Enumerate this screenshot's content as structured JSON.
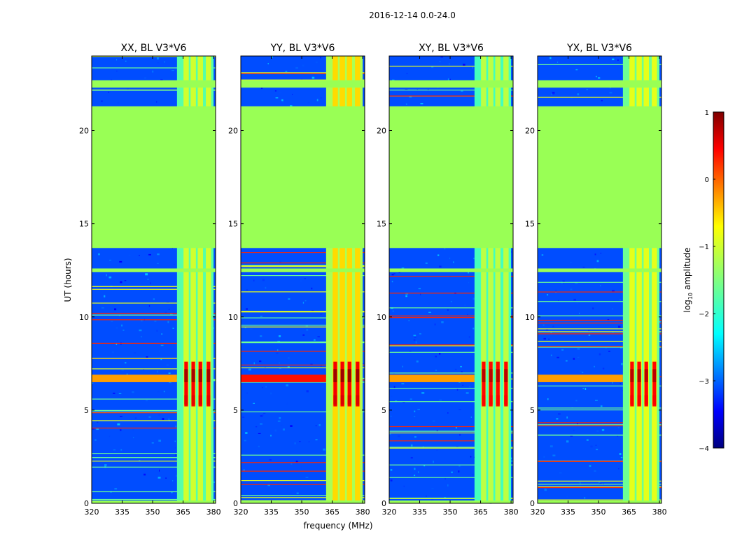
{
  "figure_title": "2016-12-14 0.0-24.0",
  "colors": {
    "colormap": [
      "#00007f",
      "#0000ff",
      "#0080ff",
      "#00ffff",
      "#80ff80",
      "#ffff00",
      "#ff8000",
      "#ff0000",
      "#7f0000"
    ],
    "flagged": "#99ff55",
    "background": "#ffffff"
  },
  "chart_data": {
    "type": "heatmap",
    "xlabel": "frequency (MHz)",
    "ylabel": "UT (hours)",
    "xlim": [
      320,
      381
    ],
    "ylim": [
      0,
      24
    ],
    "x_ticks": [
      320,
      335,
      350,
      365,
      380
    ],
    "y_ticks": [
      0,
      5,
      10,
      15,
      20
    ],
    "panels": [
      {
        "title": "XX, BL V3*V6",
        "key": "XX",
        "band_level": -1.1,
        "peak_level": 0.8
      },
      {
        "title": "YY, BL V3*V6",
        "key": "YY",
        "band_level": -0.7,
        "peak_level": 0.85
      },
      {
        "title": "XY, BL V3*V6",
        "key": "XY",
        "band_level": -1.2,
        "peak_level": 0.7
      },
      {
        "title": "YX, BL V3*V6",
        "key": "YX",
        "band_level": -1.0,
        "peak_level": 0.7
      }
    ],
    "flagged_ut_ranges": [
      [
        13.7,
        21.3
      ],
      [
        12.4,
        12.6
      ],
      [
        22.3,
        22.7
      ],
      [
        0.0,
        0.15
      ]
    ],
    "rfi_channel_centers_mhz": [
      366.5,
      370.0,
      373.5,
      377.5
    ],
    "rfi_band_mhz": [
      362,
      380
    ],
    "flare_ut_range": [
      5.2,
      7.6
    ],
    "background_level": -3.0,
    "colorbar": {
      "label": "log10 amplitude",
      "label_prefix": "log",
      "label_sub": "10",
      "label_suffix": " amplitude",
      "vmin": -4,
      "vmax": 1,
      "ticks": [
        1,
        0,
        -1,
        -2,
        -3,
        -4
      ],
      "tick_labels": [
        "1",
        "0",
        "−1",
        "−2",
        "−3",
        "−4"
      ]
    }
  }
}
